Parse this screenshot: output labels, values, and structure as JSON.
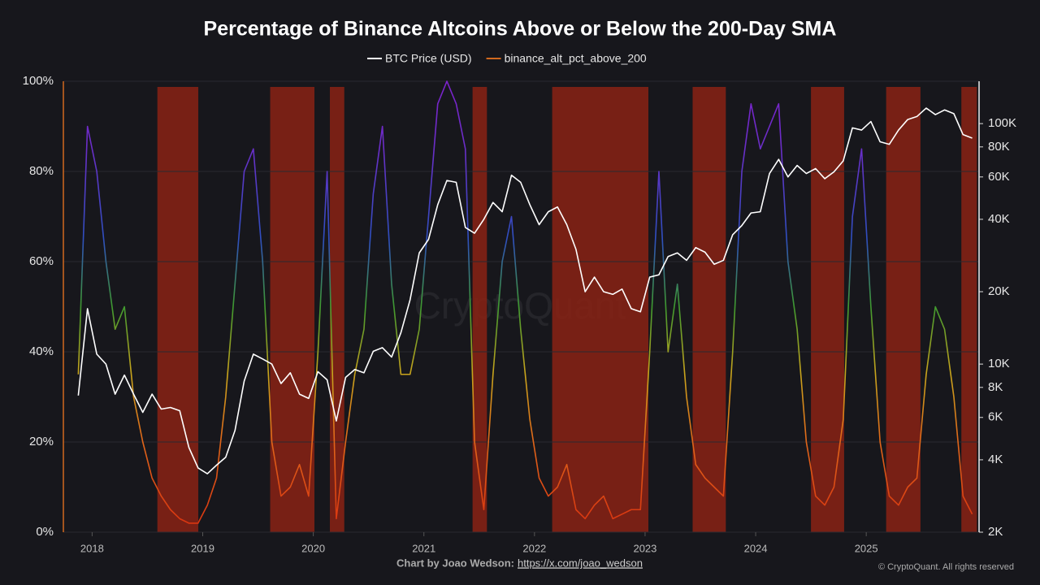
{
  "chart_data": {
    "type": "line",
    "title": "Percentage of Binance Altcoins Above or Below the 200-Day SMA",
    "watermark": "CryptoQuant",
    "footer_text": "Chart by Joao Wedson:",
    "footer_link": "https://x.com/joao_wedson",
    "credit": "© CryptoQuant. All rights reserved",
    "xlim": [
      2017.74,
      2026.02
    ],
    "xticks": [
      2018,
      2019,
      2020,
      2021,
      2022,
      2023,
      2024,
      2025
    ],
    "ylim": [
      0,
      100
    ],
    "yticks": [
      {
        "value": 0,
        "label": "0%"
      },
      {
        "value": 20,
        "label": "20%"
      },
      {
        "value": 40,
        "label": "40%"
      },
      {
        "value": 60,
        "label": "60%"
      },
      {
        "value": 80,
        "label": "80%"
      },
      {
        "value": 100,
        "label": "100%"
      }
    ],
    "y2lim": [
      2000,
      150000
    ],
    "y2scale": "log",
    "y2ticks": [
      {
        "value": 2000,
        "label": "2K"
      },
      {
        "value": 4000,
        "label": "4K"
      },
      {
        "value": 6000,
        "label": "6K"
      },
      {
        "value": 8000,
        "label": "8K"
      },
      {
        "value": 10000,
        "label": "10K"
      },
      {
        "value": 20000,
        "label": "20K"
      },
      {
        "value": 40000,
        "label": "40K"
      },
      {
        "value": 60000,
        "label": "60K"
      },
      {
        "value": 80000,
        "label": "80K"
      },
      {
        "value": 100000,
        "label": "100K"
      }
    ],
    "grid": true,
    "region_color": "#8a2214",
    "regions": [
      [
        2018.59,
        2018.96
      ],
      [
        2019.61,
        2020.01
      ],
      [
        2020.15,
        2020.28
      ],
      [
        2021.44,
        2021.57
      ],
      [
        2022.16,
        2023.03
      ],
      [
        2023.43,
        2023.73
      ],
      [
        2024.5,
        2024.8
      ],
      [
        2025.18,
        2025.49
      ],
      [
        2025.86,
        2026.0
      ]
    ],
    "colorscale": [
      [
        0,
        "#d8300f"
      ],
      [
        20,
        "#e0661a"
      ],
      [
        35,
        "#c9a41c"
      ],
      [
        50,
        "#3f9a2f"
      ],
      [
        65,
        "#2f4fc0"
      ],
      [
        85,
        "#6a2ec8"
      ],
      [
        100,
        "#7c22cc"
      ]
    ],
    "x": [
      2017.875,
      2017.958,
      2018.042,
      2018.125,
      2018.208,
      2018.292,
      2018.375,
      2018.458,
      2018.542,
      2018.625,
      2018.708,
      2018.792,
      2018.875,
      2018.958,
      2019.042,
      2019.125,
      2019.208,
      2019.292,
      2019.375,
      2019.458,
      2019.542,
      2019.625,
      2019.708,
      2019.792,
      2019.875,
      2019.958,
      2020.042,
      2020.125,
      2020.208,
      2020.292,
      2020.375,
      2020.458,
      2020.542,
      2020.625,
      2020.708,
      2020.792,
      2020.875,
      2020.958,
      2021.042,
      2021.125,
      2021.208,
      2021.292,
      2021.375,
      2021.458,
      2021.542,
      2021.625,
      2021.708,
      2021.792,
      2021.875,
      2021.958,
      2022.042,
      2022.125,
      2022.208,
      2022.292,
      2022.375,
      2022.458,
      2022.542,
      2022.625,
      2022.708,
      2022.792,
      2022.875,
      2022.958,
      2023.042,
      2023.125,
      2023.208,
      2023.292,
      2023.375,
      2023.458,
      2023.542,
      2023.625,
      2023.708,
      2023.792,
      2023.875,
      2023.958,
      2024.042,
      2024.125,
      2024.208,
      2024.292,
      2024.375,
      2024.458,
      2024.542,
      2024.625,
      2024.708,
      2024.792,
      2024.875,
      2024.958,
      2025.042,
      2025.125,
      2025.208,
      2025.292,
      2025.375,
      2025.458,
      2025.542,
      2025.625,
      2025.708,
      2025.792,
      2025.875,
      2025.958
    ],
    "series": [
      {
        "name": "BTC Price (USD)",
        "color": "#ffffff",
        "axis": "y2",
        "values": [
          7400,
          17000,
          11000,
          10000,
          7500,
          9000,
          7500,
          6300,
          7500,
          6500,
          6600,
          6400,
          4500,
          3700,
          3500,
          3800,
          4100,
          5300,
          8500,
          11000,
          10500,
          10000,
          8300,
          9200,
          7500,
          7200,
          9300,
          8600,
          5800,
          8800,
          9500,
          9200,
          11300,
          11700,
          10700,
          13500,
          18500,
          29000,
          33000,
          46000,
          58000,
          57000,
          37000,
          35000,
          40000,
          47000,
          43000,
          61000,
          57000,
          46000,
          38000,
          43000,
          45000,
          38000,
          30000,
          20000,
          23000,
          20000,
          19500,
          20500,
          17000,
          16500,
          23000,
          23500,
          28000,
          29000,
          27000,
          30500,
          29200,
          26000,
          27000,
          34500,
          37700,
          42500,
          43000,
          62000,
          71000,
          60000,
          67000,
          62000,
          65000,
          59000,
          63000,
          70000,
          96000,
          94000,
          102000,
          84000,
          82000,
          94000,
          104000,
          107000,
          116000,
          109000,
          114000,
          110000,
          90000,
          87000
        ]
      },
      {
        "name": "binance_alt_pct_above_200",
        "color": "#d2691e",
        "values": [
          35,
          90,
          80,
          60,
          45,
          50,
          30,
          20,
          12,
          8,
          5,
          3,
          2,
          2,
          6,
          12,
          30,
          55,
          80,
          85,
          60,
          20,
          8,
          10,
          15,
          8,
          40,
          80,
          3,
          20,
          35,
          45,
          75,
          90,
          55,
          35,
          35,
          45,
          70,
          95,
          100,
          95,
          85,
          20,
          5,
          35,
          60,
          70,
          45,
          25,
          12,
          8,
          10,
          15,
          5,
          3,
          6,
          8,
          3,
          4,
          5,
          5,
          40,
          80,
          40,
          55,
          30,
          15,
          12,
          10,
          8,
          40,
          80,
          95,
          85,
          90,
          95,
          60,
          45,
          20,
          8,
          6,
          10,
          25,
          70,
          85,
          50,
          20,
          8,
          6,
          10,
          12,
          35,
          50,
          45,
          30,
          8,
          4
        ]
      }
    ]
  }
}
